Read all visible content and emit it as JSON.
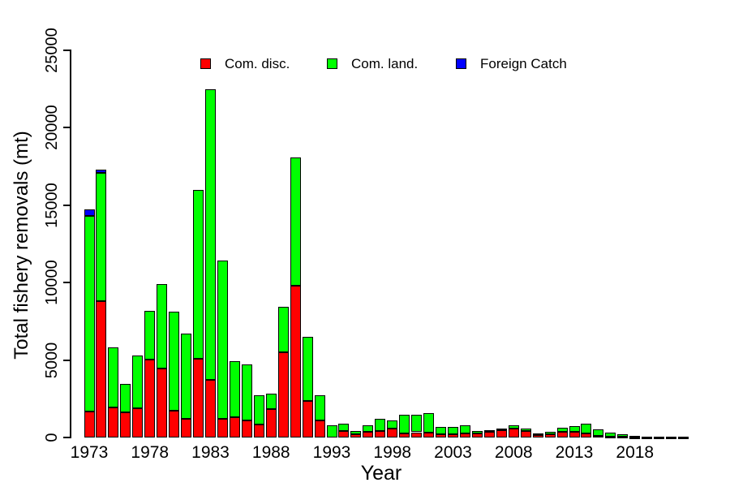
{
  "figure": {
    "ylabel": "Total fishery removals (mt)",
    "xlabel": "Year",
    "background_color": "#ffffff",
    "axis_color": "#000000"
  },
  "legend": {
    "position": "top-center",
    "items": [
      {
        "label": "Com. disc.",
        "color": "#ff0000"
      },
      {
        "label": "Com. land.",
        "color": "#00ff00"
      },
      {
        "label": "Foreign Catch",
        "color": "#0000ff"
      }
    ]
  },
  "chart_data": {
    "type": "bar",
    "stacked": true,
    "title": "",
    "xlabel": "Year",
    "ylabel": "Total fishery removals (mt)",
    "ylim": [
      0,
      25000
    ],
    "yticks": [
      0,
      5000,
      10000,
      15000,
      20000,
      25000
    ],
    "xticks": [
      1973,
      1978,
      1983,
      1988,
      1993,
      1998,
      2003,
      2008,
      2013,
      2018
    ],
    "grid": false,
    "legend_position": "top",
    "years": [
      1973,
      1974,
      1975,
      1976,
      1977,
      1978,
      1979,
      1980,
      1981,
      1982,
      1983,
      1984,
      1985,
      1986,
      1987,
      1988,
      1989,
      1990,
      1991,
      1992,
      1993,
      1994,
      1995,
      1996,
      1997,
      1998,
      1999,
      2000,
      2001,
      2002,
      2003,
      2004,
      2005,
      2006,
      2007,
      2008,
      2009,
      2010,
      2011,
      2012,
      2013,
      2014,
      2015,
      2016,
      2017,
      2018,
      2019,
      2020,
      2021,
      2022
    ],
    "series": [
      {
        "name": "Com. disc.",
        "color": "#ff0000",
        "values": [
          1700,
          8800,
          1950,
          1650,
          1900,
          5050,
          4450,
          1750,
          1200,
          5100,
          3700,
          1200,
          1300,
          1100,
          850,
          1850,
          5500,
          9800,
          2350,
          1100,
          0,
          400,
          220,
          350,
          400,
          600,
          250,
          340,
          320,
          200,
          230,
          250,
          240,
          345,
          450,
          560,
          440,
          150,
          220,
          390,
          350,
          250,
          100,
          60,
          40,
          20,
          10,
          10,
          10,
          10
        ]
      },
      {
        "name": "Com. land.",
        "color": "#00ff00",
        "values": [
          12600,
          8300,
          3850,
          1800,
          3400,
          3100,
          5450,
          6350,
          5500,
          10900,
          18800,
          10200,
          3650,
          3600,
          1850,
          1000,
          2950,
          8300,
          4150,
          1650,
          800,
          480,
          220,
          440,
          820,
          520,
          1220,
          1130,
          1230,
          490,
          470,
          520,
          190,
          115,
          150,
          210,
          160,
          100,
          130,
          250,
          400,
          630,
          430,
          260,
          180,
          60,
          40,
          30,
          30,
          20
        ]
      },
      {
        "name": "Foreign Catch",
        "color": "#0000ff",
        "values": [
          450,
          200,
          0,
          0,
          0,
          0,
          0,
          0,
          0,
          0,
          0,
          0,
          0,
          0,
          0,
          0,
          0,
          0,
          0,
          0,
          0,
          0,
          0,
          0,
          0,
          0,
          0,
          0,
          0,
          0,
          0,
          0,
          0,
          0,
          0,
          0,
          0,
          0,
          0,
          0,
          0,
          0,
          0,
          0,
          0,
          0,
          0,
          0,
          0,
          0
        ]
      }
    ]
  }
}
